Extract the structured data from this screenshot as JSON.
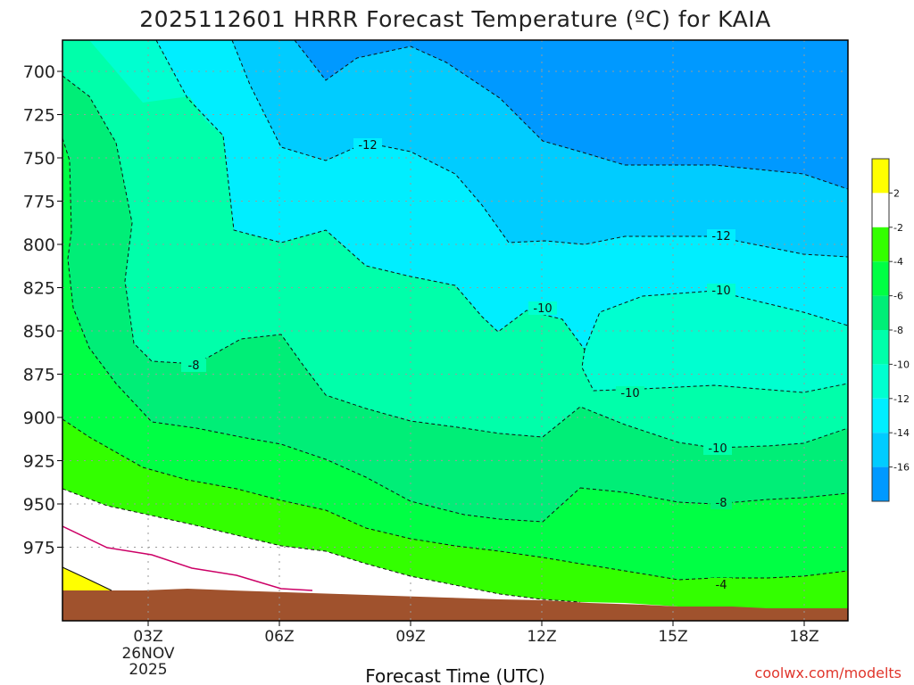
{
  "chart_data": {
    "type": "contour",
    "title": "2025112601 HRRR Forecast Temperature (ºC) for KAIA",
    "xlabel": "Forecast Time (UTC)",
    "ylabel": "",
    "y_ticks": [
      "700",
      "725",
      "750",
      "775",
      "800",
      "825",
      "850",
      "875",
      "900",
      "925",
      "950",
      "975"
    ],
    "x_ticks": [
      "03Z",
      "06Z",
      "09Z",
      "12Z",
      "15Z",
      "18Z"
    ],
    "x_date_lines": [
      "26NOV",
      "2025"
    ],
    "y_axis": "pressure (hPa), inverted",
    "grid": "dotted",
    "contour_labels": [
      "-12",
      "-10",
      "-8",
      "-10",
      "-10",
      "-12",
      "-10",
      "-8",
      "-4"
    ],
    "colorbar": {
      "ticks": [
        "2",
        "-2",
        "-4",
        "-6",
        "-8",
        "-10",
        "-12",
        "-14",
        "-16"
      ],
      "colors": [
        "#ffff00",
        "#ffffff",
        "#33ff00",
        "#00ff44",
        "#00ee77",
        "#00ffaa",
        "#00ffd0",
        "#00eeff",
        "#00ccff",
        "#0099ff"
      ]
    },
    "fill_colors": {
      "c_n14": "#0099ff",
      "c_n12": "#00ccff",
      "c_n10": "#00eeff",
      "c_n8": "#00ffd0",
      "c_n6": "#00ffaa",
      "c_n4": "#00ee77",
      "c_n2": "#00ff44",
      "c_0": "#33ff00",
      "c_2": "#ffffff",
      "c_pos": "#ffff00",
      "ground": "#a0522d",
      "magenta_line": "#cc0066"
    }
  },
  "credit": "coolwx.com/modelts"
}
